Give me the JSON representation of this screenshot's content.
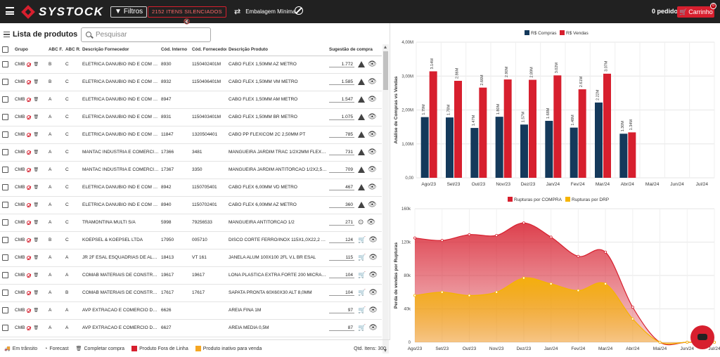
{
  "header": {
    "brand": "SYSTOCK",
    "filters_label": "Filtros",
    "silenced_label": "2152 ITENS SILENCIADOS",
    "packaging_label": "Embalagem Mínima",
    "order_label": "0 pedido",
    "cart_label": "Carrinho",
    "cart_count": "0"
  },
  "list": {
    "title": "Lista de produtos",
    "search_placeholder": "Pesquisar",
    "columns": [
      "Grupo",
      "ABC F.",
      "ABC R.",
      "Descrição Fornecedor",
      "Cód. Interno",
      "Cód. Fornecedor",
      "Descrição Produto",
      "Sugestão de compra"
    ],
    "rows": [
      {
        "grupo": "CMB",
        "abcf": "B",
        "abcr": "C",
        "fornecedor": "ELETRICA DANUBIO IND E COM DE ...",
        "interno": "8930",
        "codforn": "1150402401M",
        "produto": "CABO FLEX 1,50MM AZ METRO",
        "sugestao": "1.772",
        "icons": "warn"
      },
      {
        "grupo": "CMB",
        "abcf": "B",
        "abcr": "C",
        "fornecedor": "ELETRICA DANUBIO IND E COM DE ...",
        "interno": "8932",
        "codforn": "1150406401M",
        "produto": "CABO FLEX 1,50MM VM METRO",
        "sugestao": "1.585",
        "icons": "warn"
      },
      {
        "grupo": "CMB",
        "abcf": "A",
        "abcr": "C",
        "fornecedor": "ELETRICA DANUBIO IND E COM DE ...",
        "interno": "8947",
        "codforn": "",
        "produto": "CABO FLEX 1,50MM AM METRO",
        "sugestao": "1.547",
        "icons": "warn"
      },
      {
        "grupo": "CMB",
        "abcf": "A",
        "abcr": "C",
        "fornecedor": "ELETRICA DANUBIO IND E COM DE ...",
        "interno": "8931",
        "codforn": "1150403401M",
        "produto": "CABO FLEX 1,50MM BR METRO",
        "sugestao": "1.075",
        "icons": "warn"
      },
      {
        "grupo": "CMB",
        "abcf": "A",
        "abcr": "C",
        "fornecedor": "ELETRICA DANUBIO IND E COM DE ...",
        "interno": "11847",
        "codforn": "1320504401",
        "produto": "CABO PP FLEXICOM 2C 2,50MM PT",
        "sugestao": "785",
        "icons": "warn"
      },
      {
        "grupo": "CMB",
        "abcf": "A",
        "abcr": "C",
        "fornecedor": "MANTAC INDUSTRIA E COMERCIO ...",
        "interno": "17366",
        "codforn": "3481",
        "produto": "MANGUEIRA JARDIM TRAC 1/2X2MM FLEX VD",
        "sugestao": "731",
        "icons": "warn"
      },
      {
        "grupo": "CMB",
        "abcf": "A",
        "abcr": "C",
        "fornecedor": "MANTAC INDUSTRIA E COMERCIO ...",
        "interno": "17367",
        "codforn": "3350",
        "produto": "MANGUEIRA JARDIM ANTITORCAO 1/2X2,5MM A",
        "sugestao": "709",
        "icons": "warn"
      },
      {
        "grupo": "CMB",
        "abcf": "A",
        "abcr": "C",
        "fornecedor": "ELETRICA DANUBIO IND E COM DE ...",
        "interno": "8942",
        "codforn": "1150705401",
        "produto": "CABO FLEX 6,00MM VD METRO",
        "sugestao": "467",
        "icons": "warn"
      },
      {
        "grupo": "CMB",
        "abcf": "A",
        "abcr": "C",
        "fornecedor": "ELETRICA DANUBIO IND E COM DE ...",
        "interno": "8940",
        "codforn": "1150702401",
        "produto": "CABO FLEX 6,00MM AZ METRO",
        "sugestao": "360",
        "icons": "warn"
      },
      {
        "grupo": "CMB",
        "abcf": "A",
        "abcr": "C",
        "fornecedor": "TRAMONTINA MULTI S/A",
        "interno": "5998",
        "codforn": "79256533",
        "produto": "MANGUEIRA ANTITORCAO 1/2",
        "sugestao": "271",
        "icons": "target"
      },
      {
        "grupo": "CMB",
        "abcf": "B",
        "abcr": "C",
        "fornecedor": "KOEPSEL & KOEPSEL LTDA",
        "interno": "17950",
        "codforn": "005710",
        "produto": "DISCO CORTE FERRO/INOX 115X1,0X22,2 KOF",
        "sugestao": "124",
        "icons": "cart"
      },
      {
        "grupo": "CMB",
        "abcf": "A",
        "abcr": "A",
        "fornecedor": "JR 2F ESAL ESQUADRIAS DE ALUMI...",
        "interno": "18413",
        "codforn": "VT 161",
        "produto": "JANELA ALUM 100X100 2FL V.L BR ESAL",
        "sugestao": "115",
        "icons": "cart"
      },
      {
        "grupo": "CMB",
        "abcf": "A",
        "abcr": "A",
        "fornecedor": "COMAB MATERIAIS DE CONSTRUC...",
        "interno": "19617",
        "codforn": "19617",
        "produto": "LONA PLASTICA EXTRA FORTE 200 MICRAS(P)",
        "sugestao": "104",
        "icons": "cart"
      },
      {
        "grupo": "CMB",
        "abcf": "A",
        "abcr": "B",
        "fornecedor": "COMAB MATERIAIS DE CONSTRUC...",
        "interno": "17617",
        "codforn": "17617",
        "produto": "SAPATA PRONTA 60X60X30 ALT 8,0MM",
        "sugestao": "104",
        "icons": "cart"
      },
      {
        "grupo": "CMB",
        "abcf": "A",
        "abcr": "A",
        "fornecedor": "AVP EXTRACAO E COMERCIO DE A...",
        "interno": "6626",
        "codforn": "",
        "produto": "AREIA FINA 1M",
        "sugestao": "97",
        "icons": "cart"
      },
      {
        "grupo": "CMB",
        "abcf": "A",
        "abcr": "A",
        "fornecedor": "AVP EXTRACAO E COMERCIO DE A...",
        "interno": "6627",
        "codforn": "",
        "produto": "AREIA MEDIA 0,5M",
        "sugestao": "87",
        "icons": "cart"
      }
    ]
  },
  "footer": {
    "legend": [
      "Em trânsito",
      "Forecast",
      "Completar compra",
      "Produto Fora de Linha",
      "Produto inativo para venda"
    ],
    "legend_colors": [
      "#555555",
      "#555555",
      "#555555",
      "#d71f2e",
      "#f5a623"
    ],
    "count_label": "Qtd. Itens: 300"
  },
  "chart_data": [
    {
      "type": "bar",
      "ylabel": "Análise de Compras vs Vendas",
      "categories": [
        "Ago/23",
        "Set/23",
        "Out/23",
        "Nov/23",
        "Dez/23",
        "Jan/24",
        "Fev/24",
        "Mar/24",
        "Abr/24",
        "Mai/24",
        "Jun/24",
        "Jul/24"
      ],
      "series": [
        {
          "name": "R$ Compras",
          "color": "#14395b",
          "values": [
            1.79,
            1.78,
            1.47,
            1.8,
            1.57,
            1.68,
            1.48,
            2.22,
            1.3,
            null,
            null,
            null
          ],
          "labels": [
            "1.79M",
            "1.78M",
            "1.47M",
            "1.80M",
            "1.57M",
            "1.68M",
            "1.48M",
            "2.22M",
            "1.30M",
            "",
            "",
            ""
          ]
        },
        {
          "name": "R$ Vendas",
          "color": "#d71f2e",
          "values": [
            3.14,
            2.86,
            2.66,
            2.9,
            2.89,
            3.02,
            2.61,
            3.07,
            1.34,
            null,
            null,
            null
          ],
          "labels": [
            "3.14M",
            "2.86M",
            "2.66M",
            "2.90M",
            "2.89M",
            "3.02M",
            "2.61M",
            "3.07M",
            "1.34M",
            "",
            "",
            ""
          ]
        }
      ],
      "ylim": [
        0,
        4
      ],
      "yticks": [
        "0,00",
        "1,00M",
        "2,00M",
        "3,00M",
        "4,00M"
      ],
      "legend": "top",
      "grid": true
    },
    {
      "type": "area",
      "ylabel": "Perda de vendas por Rupturas",
      "x": [
        "Ago/23",
        "Set/23",
        "Out/23",
        "Nov/23",
        "Dez/23",
        "Jan/24",
        "Fev/24",
        "Mar/24",
        "Abr/24",
        "Mai/24",
        "Jun/24",
        "Jul/24"
      ],
      "series": [
        {
          "name": "Rupturas por COMPRA",
          "color": "#d71f2e",
          "values": [
            125000,
            122000,
            129000,
            128000,
            143000,
            126000,
            103000,
            108000,
            42000,
            0,
            0,
            0
          ]
        },
        {
          "name": "Rupturas por DRP",
          "color": "#f5b400",
          "values": [
            56000,
            60000,
            56000,
            60000,
            77000,
            70000,
            62000,
            70000,
            28000,
            0,
            0,
            0
          ]
        }
      ],
      "ylim": [
        0,
        160000
      ],
      "yticks": [
        "0",
        "40k",
        "80k",
        "120k",
        "160k"
      ],
      "legend": "top",
      "grid": true
    }
  ]
}
